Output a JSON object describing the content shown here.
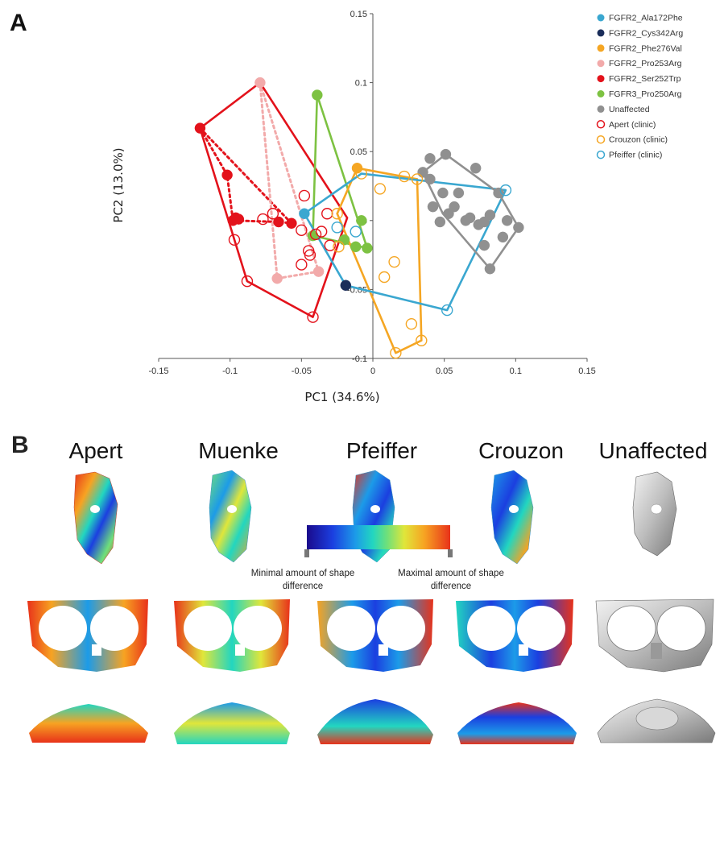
{
  "panel_a_letter": "A",
  "panel_b_letter": "B",
  "chart_data": {
    "type": "scatter",
    "title": "",
    "xlabel": "PC1 (34.6%)",
    "ylabel": "PC2 (13.0%)",
    "xlim": [
      -0.15,
      0.15
    ],
    "ylim": [
      -0.1,
      0.15
    ],
    "x_ticks": [
      -0.15,
      -0.1,
      -0.05,
      0,
      0.05,
      0.1,
      0.15
    ],
    "y_ticks": [
      -0.1,
      -0.05,
      0,
      0.05,
      0.1,
      0.15
    ],
    "x_tick_labels": [
      "-0.15",
      "-0.1",
      "-0.05",
      "0",
      "0.05",
      "0.1",
      "0.15"
    ],
    "y_tick_labels": [
      "-0.1",
      "-0.05",
      "0",
      "0.05",
      "0.1",
      "0.15"
    ],
    "grid": false,
    "legend_position": "top-right",
    "series": [
      {
        "name": "FGFR2_Ala172Phe",
        "color": "#3aa7d0",
        "filled": true,
        "points": [
          [
            -0.048,
            0.005
          ]
        ]
      },
      {
        "name": "FGFR2_Cys342Arg",
        "color": "#1a2d5a",
        "filled": true,
        "points": [
          [
            -0.019,
            -0.047
          ]
        ]
      },
      {
        "name": "FGFR2_Phe276Val",
        "color": "#f5a623",
        "filled": true,
        "points": [
          [
            -0.011,
            0.038
          ]
        ]
      },
      {
        "name": "FGFR2_Pro253Arg",
        "color": "#f2aaaa",
        "filled": true,
        "points": [
          [
            -0.079,
            0.1
          ],
          [
            -0.067,
            -0.042
          ],
          [
            -0.038,
            -0.037
          ]
        ]
      },
      {
        "name": "FGFR2_Ser252Trp",
        "color": "#e3121b",
        "filled": true,
        "points": [
          [
            -0.121,
            0.067
          ],
          [
            -0.102,
            0.033
          ],
          [
            -0.098,
            0.0
          ],
          [
            -0.096,
            0.002
          ],
          [
            -0.066,
            -0.001
          ],
          [
            -0.057,
            -0.002
          ],
          [
            -0.094,
            0.001
          ]
        ]
      },
      {
        "name": "FGFR3_Pro250Arg",
        "color": "#7dc242",
        "filled": true,
        "points": [
          [
            -0.039,
            0.091
          ],
          [
            -0.042,
            -0.011
          ],
          [
            -0.008,
            0.0
          ],
          [
            -0.012,
            -0.019
          ],
          [
            -0.004,
            -0.02
          ],
          [
            -0.02,
            -0.014
          ]
        ]
      },
      {
        "name": "Unaffected",
        "color": "#909090",
        "filled": true,
        "points": [
          [
            0.035,
            0.035
          ],
          [
            0.04,
            0.045
          ],
          [
            0.051,
            0.048
          ],
          [
            0.072,
            0.038
          ],
          [
            0.049,
            0.02
          ],
          [
            0.053,
            0.005
          ],
          [
            0.06,
            0.02
          ],
          [
            0.068,
            0.002
          ],
          [
            0.074,
            -0.003
          ],
          [
            0.078,
            -0.018
          ],
          [
            0.082,
            -0.035
          ],
          [
            0.094,
            0.0
          ],
          [
            0.102,
            -0.005
          ],
          [
            0.088,
            0.02
          ],
          [
            0.057,
            0.01
          ],
          [
            0.042,
            0.01
          ],
          [
            0.082,
            0.004
          ],
          [
            0.091,
            -0.012
          ],
          [
            0.065,
            0.0
          ],
          [
            0.047,
            -0.001
          ],
          [
            0.04,
            0.03
          ],
          [
            0.078,
            -0.001
          ]
        ]
      },
      {
        "name": "Apert (clinic)",
        "color": "#e3121b",
        "filled": false,
        "points": [
          [
            -0.088,
            -0.044
          ],
          [
            -0.042,
            -0.07
          ],
          [
            -0.048,
            0.018
          ],
          [
            -0.07,
            0.005
          ],
          [
            -0.04,
            -0.01
          ],
          [
            -0.045,
            -0.022
          ],
          [
            -0.05,
            -0.032
          ],
          [
            -0.044,
            -0.025
          ],
          [
            -0.036,
            -0.008
          ],
          [
            -0.097,
            -0.014
          ],
          [
            -0.077,
            0.001
          ],
          [
            -0.032,
            0.005
          ],
          [
            -0.05,
            -0.007
          ],
          [
            -0.03,
            -0.018
          ]
        ]
      },
      {
        "name": "Crouzon (clinic)",
        "color": "#f5a623",
        "filled": false,
        "points": [
          [
            -0.008,
            0.034
          ],
          [
            0.022,
            0.032
          ],
          [
            0.031,
            0.03
          ],
          [
            0.005,
            0.023
          ],
          [
            0.016,
            -0.096
          ],
          [
            0.027,
            -0.075
          ],
          [
            0.034,
            -0.087
          ],
          [
            0.008,
            -0.041
          ],
          [
            -0.024,
            -0.019
          ],
          [
            -0.025,
            0.005
          ],
          [
            0.015,
            -0.03
          ]
        ]
      },
      {
        "name": "Pfeiffer (clinic)",
        "color": "#3aa7d0",
        "filled": false,
        "points": [
          [
            0.093,
            0.022
          ],
          [
            0.052,
            -0.065
          ],
          [
            -0.012,
            -0.008
          ],
          [
            -0.025,
            -0.005
          ]
        ]
      }
    ],
    "hulls": [
      {
        "series": "FGFR2_Ser252Trp",
        "color": "#e3121b",
        "style": "dotted",
        "points": [
          [
            -0.121,
            0.067
          ],
          [
            -0.057,
            -0.002
          ],
          [
            -0.066,
            -0.001
          ],
          [
            -0.098,
            0.0
          ],
          [
            -0.102,
            0.033
          ]
        ]
      },
      {
        "series": "FGFR2_Pro253Arg",
        "color": "#f2aaaa",
        "style": "dotted",
        "points": [
          [
            -0.079,
            0.1
          ],
          [
            -0.038,
            -0.037
          ],
          [
            -0.067,
            -0.042
          ]
        ]
      },
      {
        "series": "Apert (clinic)",
        "color": "#e3121b",
        "style": "solid",
        "points": [
          [
            -0.121,
            0.067
          ],
          [
            -0.079,
            0.1
          ],
          [
            -0.018,
            0.002
          ],
          [
            -0.042,
            -0.07
          ],
          [
            -0.088,
            -0.044
          ]
        ]
      },
      {
        "series": "FGFR3_Pro250Arg",
        "color": "#7dc242",
        "style": "solid",
        "points": [
          [
            -0.039,
            0.091
          ],
          [
            -0.004,
            -0.02
          ],
          [
            -0.042,
            -0.011
          ]
        ]
      },
      {
        "series": "Crouzon (clinic)",
        "color": "#f5a623",
        "style": "solid",
        "points": [
          [
            -0.011,
            0.038
          ],
          [
            0.031,
            0.03
          ],
          [
            0.034,
            -0.087
          ],
          [
            0.016,
            -0.096
          ],
          [
            -0.025,
            0.005
          ]
        ]
      },
      {
        "series": "Pfeiffer (clinic)",
        "color": "#3aa7d0",
        "style": "solid",
        "points": [
          [
            -0.048,
            0.005
          ],
          [
            -0.008,
            0.034
          ],
          [
            0.093,
            0.022
          ],
          [
            0.052,
            -0.065
          ],
          [
            -0.019,
            -0.047
          ]
        ]
      },
      {
        "series": "Unaffected",
        "color": "#909090",
        "style": "solid",
        "points": [
          [
            0.035,
            0.035
          ],
          [
            0.051,
            0.048
          ],
          [
            0.088,
            0.02
          ],
          [
            0.102,
            -0.005
          ],
          [
            0.082,
            -0.035
          ],
          [
            0.049,
            0.005
          ]
        ]
      }
    ]
  },
  "panel_b": {
    "columns": [
      "Apert",
      "Muenke",
      "Pfeiffer",
      "Crouzon",
      "Unaffected"
    ],
    "colorbar": {
      "min_label": "Minimal amount of shape difference",
      "max_label": "Maximal amount of shape difference"
    }
  }
}
